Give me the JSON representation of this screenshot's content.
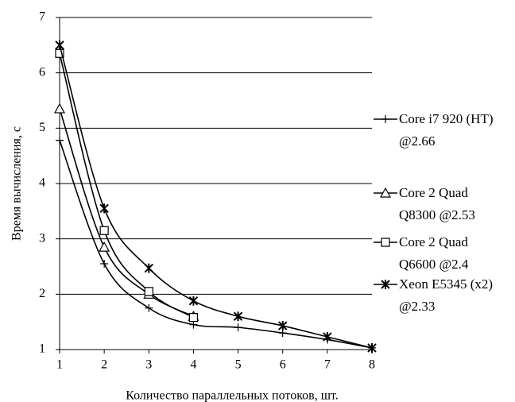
{
  "chart_data": {
    "type": "line",
    "x_label": "Количество параллельных потоков, шт.",
    "y_label": "Время вычисления, с",
    "x": [
      1,
      2,
      3,
      4,
      5,
      6,
      7,
      8
    ],
    "series": [
      {
        "name": "Core i7 920 (HT) @2.66",
        "color": "#000000",
        "marker": "plus",
        "values": [
          4.78,
          2.55,
          1.75,
          1.45,
          1.4,
          1.3,
          1.18,
          1.03
        ]
      },
      {
        "name": "Core 2 Quad Q8300 @2.53",
        "color": "#000000",
        "marker": "triangle",
        "values": [
          5.35,
          2.85,
          2.0,
          1.6,
          null,
          null,
          null,
          null
        ]
      },
      {
        "name": "Core 2 Quad Q6600 @2.4",
        "color": "#000000",
        "marker": "square",
        "values": [
          6.35,
          3.15,
          2.05,
          1.58,
          null,
          null,
          null,
          null
        ]
      },
      {
        "name": "Xeon E5345 (x2) @2.33",
        "color": "#000000",
        "marker": "asterisk",
        "values": [
          6.5,
          3.55,
          2.47,
          1.88,
          1.6,
          1.43,
          1.23,
          1.03
        ]
      }
    ],
    "xlim": [
      1,
      8
    ],
    "ylim": [
      1,
      7
    ],
    "xticks": [
      1,
      2,
      3,
      4,
      5,
      6,
      7,
      8
    ],
    "yticks": [
      1,
      2,
      3,
      4,
      5,
      6,
      7
    ],
    "grid": true,
    "smooth": true,
    "legend": "right"
  }
}
